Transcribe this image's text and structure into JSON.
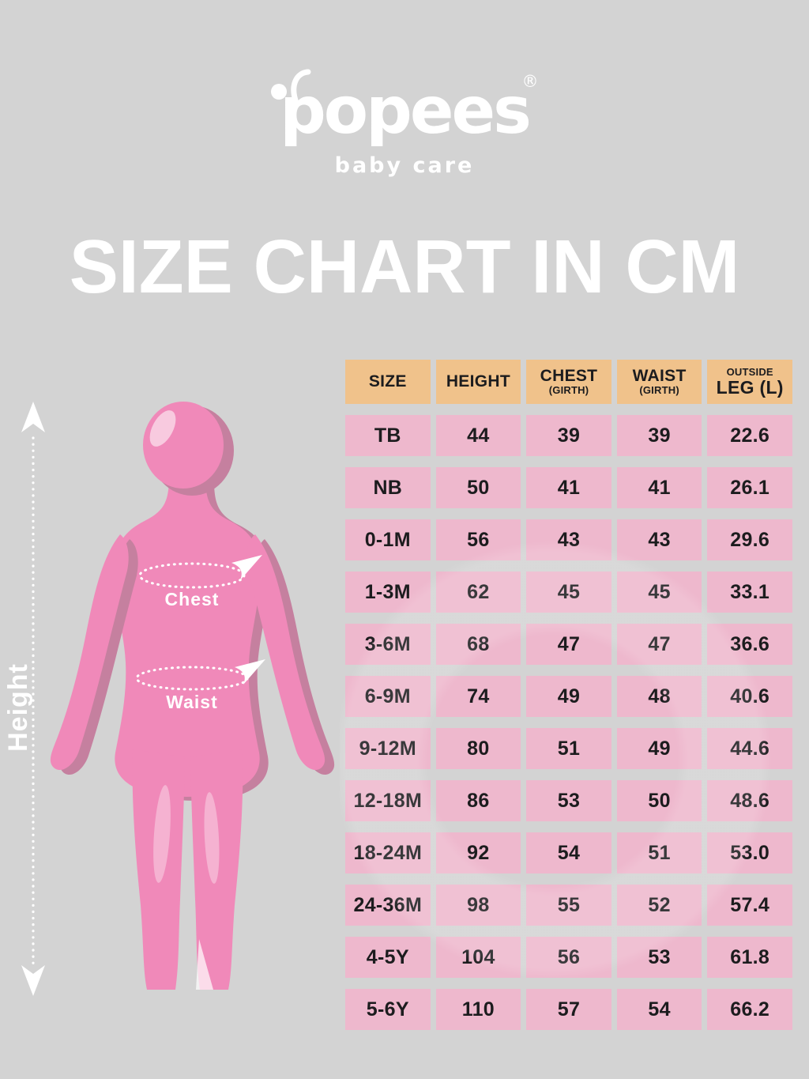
{
  "brand": {
    "name": "popees",
    "registered": "®",
    "tagline": "baby care"
  },
  "title": "SIZE CHART IN CM",
  "figure": {
    "height_label": "Height",
    "chest_label": "Chest",
    "waist_label": "Waist"
  },
  "table": {
    "columns": [
      {
        "main": "SIZE"
      },
      {
        "main": "HEIGHT"
      },
      {
        "main": "CHEST",
        "sub": "(GIRTH)"
      },
      {
        "main": "WAIST",
        "sub": "(GIRTH)"
      },
      {
        "pre": "OUTSIDE",
        "main": "LEG (L)",
        "big": true
      }
    ],
    "rows": [
      [
        "TB",
        "44",
        "39",
        "39",
        "22.6"
      ],
      [
        "NB",
        "50",
        "41",
        "41",
        "26.1"
      ],
      [
        "0-1M",
        "56",
        "43",
        "43",
        "29.6"
      ],
      [
        "1-3M",
        "62",
        "45",
        "45",
        "33.1"
      ],
      [
        "3-6M",
        "68",
        "47",
        "47",
        "36.6"
      ],
      [
        "6-9M",
        "74",
        "49",
        "48",
        "40.6"
      ],
      [
        "9-12M",
        "80",
        "51",
        "49",
        "44.6"
      ],
      [
        "12-18M",
        "86",
        "53",
        "50",
        "48.6"
      ],
      [
        "18-24M",
        "92",
        "54",
        "51",
        "53.0"
      ],
      [
        "24-36M",
        "98",
        "55",
        "52",
        "57.4"
      ],
      [
        "4-5Y",
        "104",
        "56",
        "53",
        "61.8"
      ],
      [
        "5-6Y",
        "110",
        "57",
        "54",
        "66.2"
      ]
    ]
  },
  "chart_data": {
    "type": "table",
    "title": "SIZE CHART IN CM",
    "unit": "cm",
    "columns": [
      "SIZE",
      "HEIGHT",
      "CHEST (GIRTH)",
      "WAIST (GIRTH)",
      "OUTSIDE LEG (L)"
    ],
    "rows": [
      [
        "TB",
        44,
        39,
        39,
        22.6
      ],
      [
        "NB",
        50,
        41,
        41,
        26.1
      ],
      [
        "0-1M",
        56,
        43,
        43,
        29.6
      ],
      [
        "1-3M",
        62,
        45,
        45,
        33.1
      ],
      [
        "3-6M",
        68,
        47,
        47,
        36.6
      ],
      [
        "6-9M",
        74,
        49,
        48,
        40.6
      ],
      [
        "9-12M",
        80,
        51,
        49,
        44.6
      ],
      [
        "12-18M",
        86,
        53,
        50,
        48.6
      ],
      [
        "18-24M",
        92,
        54,
        51,
        53.0
      ],
      [
        "24-36M",
        98,
        55,
        52,
        57.4
      ],
      [
        "4-5Y",
        104,
        56,
        53,
        61.8
      ],
      [
        "5-6Y",
        110,
        57,
        54,
        66.2
      ]
    ]
  },
  "colors": {
    "background": "#d3d3d3",
    "header_cell": "#f0c28b",
    "data_cell": "#eeb8cd",
    "cell_text": "#1c1c1e",
    "white": "#ffffff",
    "figure_pink": "#f089b9",
    "figure_shadow": "#c5809f",
    "figure_highlight": "#f9bcd9"
  }
}
